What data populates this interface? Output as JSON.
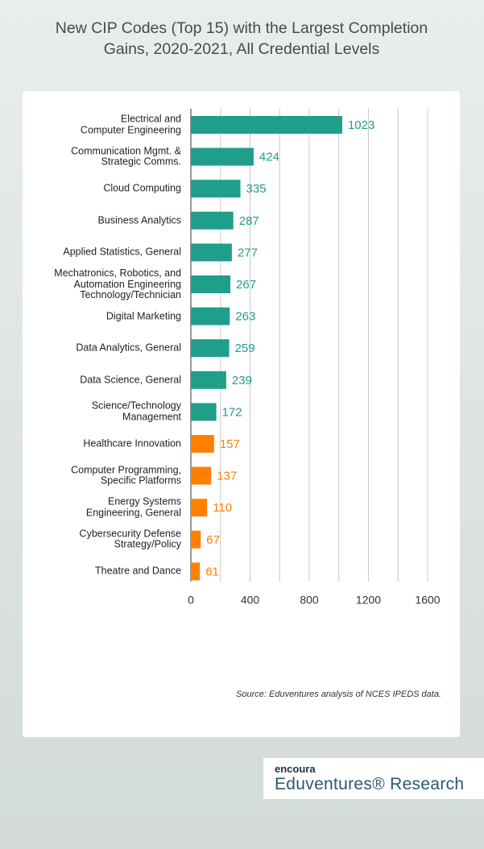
{
  "chart_data": {
    "type": "barh",
    "title": "New CIP Codes (Top 15) with the Largest Completion Gains, 2020-2021, All Credential Levels",
    "categories": [
      "Electrical and\nComputer Engineering",
      "Communication Mgmt. &\nStrategic Comms.",
      "Cloud Computing",
      "Business Analytics",
      "Applied Statistics, General",
      "Mechatronics, Robotics, and\nAutomation Engineering\nTechnology/Technician",
      "Digital Marketing",
      "Data Analytics, General",
      "Data Science, General",
      "Science/Technology\nManagement",
      "Healthcare Innovation",
      "Computer Programming,\nSpecific Platforms",
      "Energy Systems\nEngineering, General",
      "Cybersecurity Defense\nStrategy/Policy",
      "Theatre and Dance"
    ],
    "values": [
      1023,
      424,
      335,
      287,
      277,
      267,
      263,
      259,
      239,
      172,
      157,
      137,
      110,
      67,
      61
    ],
    "colors": [
      "#1f9e89",
      "#1f9e89",
      "#1f9e89",
      "#1f9e89",
      "#1f9e89",
      "#1f9e89",
      "#1f9e89",
      "#1f9e89",
      "#1f9e89",
      "#1f9e89",
      "#ff8000",
      "#ff8000",
      "#ff8000",
      "#ff8000",
      "#ff8000"
    ],
    "xlim": [
      0,
      1600
    ],
    "xticks": [
      0,
      400,
      800,
      1200,
      1600
    ],
    "xgrid_minor": [
      200,
      600,
      1000,
      1400
    ],
    "grid": true,
    "source": "Source: Eduventures analysis of NCES IPEDS data."
  },
  "footer": {
    "brand": "encoura",
    "organization": "Eduventures® Research"
  }
}
